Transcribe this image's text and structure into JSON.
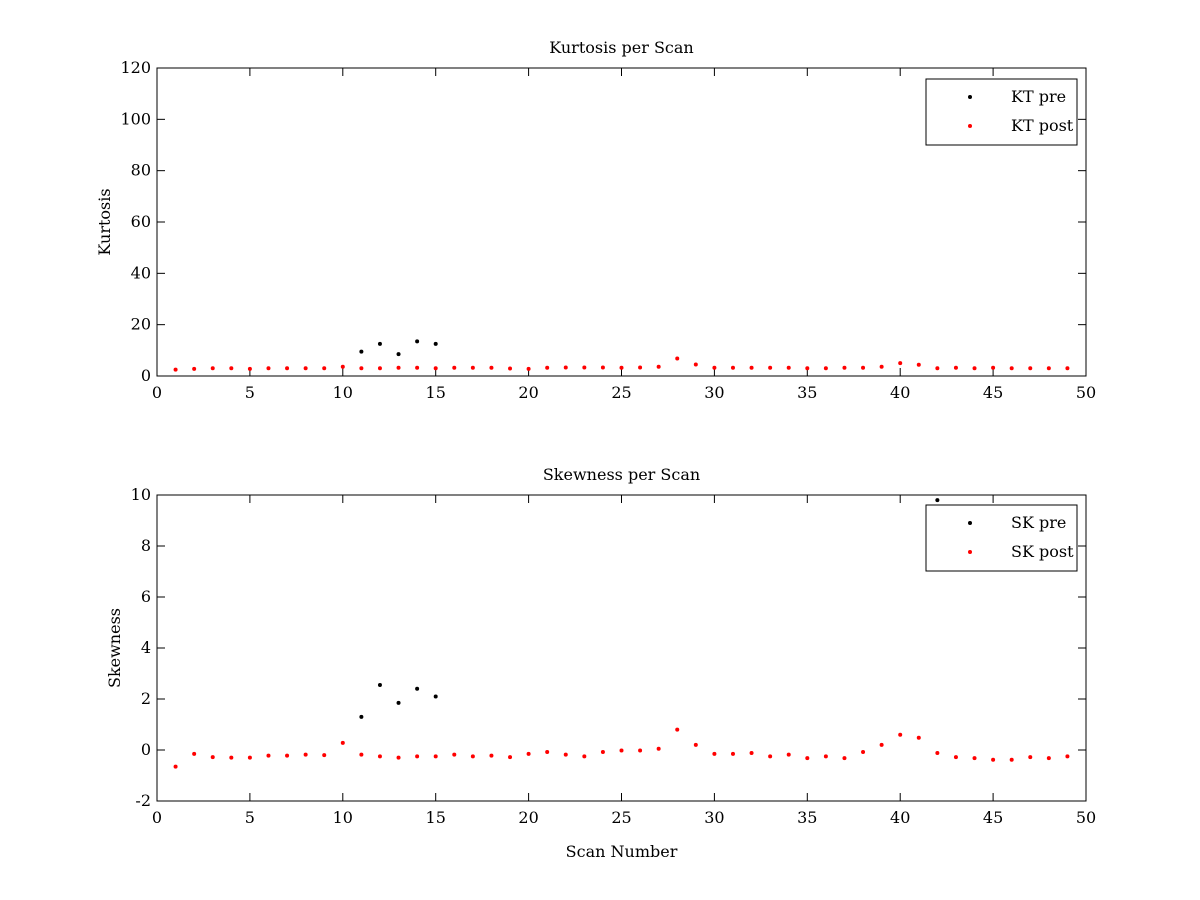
{
  "chart_data": [
    {
      "type": "scatter",
      "title": "Kurtosis per Scan",
      "xlabel": "",
      "ylabel": "Kurtosis",
      "xlim": [
        0,
        50
      ],
      "ylim": [
        0,
        120
      ],
      "xticks": [
        0,
        5,
        10,
        15,
        20,
        25,
        30,
        35,
        40,
        45,
        50
      ],
      "yticks": [
        0,
        20,
        40,
        60,
        80,
        100,
        120
      ],
      "grid": false,
      "legend_position": "top-right",
      "series": [
        {
          "name": "KT pre",
          "color": "#000000",
          "x": [
            11,
            12,
            13,
            14,
            15
          ],
          "y": [
            9.5,
            12.5,
            8.5,
            13.5,
            12.5
          ]
        },
        {
          "name": "KT post",
          "color": "#ff0000",
          "x": [
            1,
            2,
            3,
            4,
            5,
            6,
            7,
            8,
            9,
            10,
            11,
            12,
            13,
            14,
            15,
            16,
            17,
            18,
            19,
            20,
            21,
            22,
            23,
            24,
            25,
            26,
            27,
            28,
            29,
            30,
            31,
            32,
            33,
            34,
            35,
            36,
            37,
            38,
            39,
            40,
            41,
            42,
            43,
            44,
            45,
            46,
            47,
            48,
            49
          ],
          "y": [
            2.5,
            2.8,
            3.0,
            3.0,
            2.8,
            3.0,
            3.0,
            3.0,
            3.0,
            3.6,
            3.0,
            3.0,
            3.2,
            3.2,
            3.0,
            3.2,
            3.2,
            3.2,
            2.9,
            2.8,
            3.2,
            3.3,
            3.3,
            3.3,
            3.2,
            3.3,
            3.6,
            6.8,
            4.5,
            3.2,
            3.2,
            3.2,
            3.2,
            3.2,
            3.0,
            3.0,
            3.2,
            3.2,
            3.6,
            5.0,
            4.4,
            3.0,
            3.2,
            3.0,
            3.2,
            3.0,
            3.0,
            3.0,
            3.0
          ]
        }
      ]
    },
    {
      "type": "scatter",
      "title": "Skewness per Scan",
      "xlabel": "Scan Number",
      "ylabel": "Skewness",
      "xlim": [
        0,
        50
      ],
      "ylim": [
        -2,
        10
      ],
      "xticks": [
        0,
        5,
        10,
        15,
        20,
        25,
        30,
        35,
        40,
        45,
        50
      ],
      "yticks": [
        -2,
        0,
        2,
        4,
        6,
        8,
        10
      ],
      "grid": false,
      "legend_position": "top-right",
      "series": [
        {
          "name": "SK pre",
          "color": "#000000",
          "x": [
            11,
            12,
            13,
            14,
            15,
            42
          ],
          "y": [
            1.3,
            2.55,
            1.85,
            2.4,
            2.1,
            9.8
          ]
        },
        {
          "name": "SK post",
          "color": "#ff0000",
          "x": [
            1,
            2,
            3,
            4,
            5,
            6,
            7,
            8,
            9,
            10,
            11,
            12,
            13,
            14,
            15,
            16,
            17,
            18,
            19,
            20,
            21,
            22,
            23,
            24,
            25,
            26,
            27,
            28,
            29,
            30,
            31,
            32,
            33,
            34,
            35,
            36,
            37,
            38,
            39,
            40,
            41,
            42,
            43,
            44,
            45,
            46,
            47,
            48,
            49
          ],
          "y": [
            -0.65,
            -0.15,
            -0.28,
            -0.3,
            -0.3,
            -0.22,
            -0.22,
            -0.18,
            -0.2,
            0.28,
            -0.18,
            -0.25,
            -0.3,
            -0.25,
            -0.25,
            -0.18,
            -0.25,
            -0.22,
            -0.28,
            -0.15,
            -0.08,
            -0.18,
            -0.25,
            -0.08,
            -0.02,
            -0.02,
            0.05,
            0.8,
            0.2,
            -0.15,
            -0.15,
            -0.12,
            -0.25,
            -0.18,
            -0.32,
            -0.25,
            -0.32,
            -0.08,
            0.2,
            0.6,
            0.48,
            -0.12,
            -0.28,
            -0.32,
            -0.38,
            -0.38,
            -0.28,
            -0.32,
            -0.25
          ]
        }
      ]
    }
  ]
}
